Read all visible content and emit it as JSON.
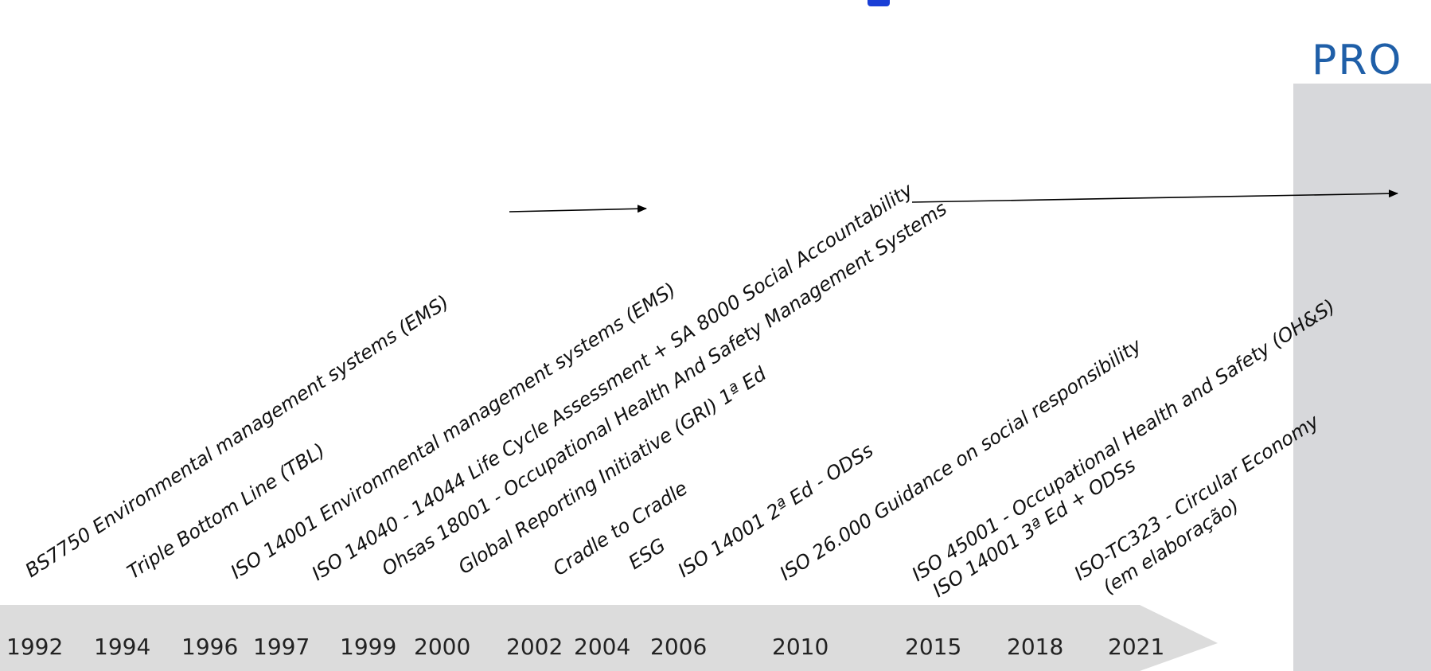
{
  "logo": {
    "text": "PRO"
  },
  "years": [
    "1992",
    "1994",
    "1996",
    "1997",
    "1999",
    "2000",
    "2002",
    "2004",
    "2006",
    "2010",
    "2015",
    "2018",
    "2021"
  ],
  "events": [
    {
      "text": "BS7750 Environmental management systems (EMS)"
    },
    {
      "text": "Triple Bottom Line (TBL)"
    },
    {
      "text": "ISO 14001 Environmental management systems (EMS)"
    },
    {
      "text": "ISO 14040 - 14044  Life Cycle Assessment + SA 8000 Social Accountability"
    },
    {
      "text": "Ohsas 18001 - Occupational Health And Safety Management Systems"
    },
    {
      "text": "Global Reporting Initiative (GRI) 1ª Ed"
    },
    {
      "text": "Cradle to Cradle"
    },
    {
      "text": "ESG"
    },
    {
      "text": "ISO 14001 2ª Ed - ODSs"
    },
    {
      "text_prefix": "ISO 26.000 ",
      "text_italic": "Guidance on social responsibility"
    },
    {
      "text": "ISO 45001 - Occupational Health and Safety (OH&S)"
    },
    {
      "text": "ISO 14001 3ª Ed + ODSs"
    },
    {
      "text": "ISO-TC323 - Circular Economy"
    },
    {
      "text": "(em elaboração)"
    }
  ],
  "colors": {
    "band": "#dcdcdc",
    "panel": "#d7d8db",
    "logo": "#1f5fa8",
    "title_accent": "#1a3fd6"
  }
}
